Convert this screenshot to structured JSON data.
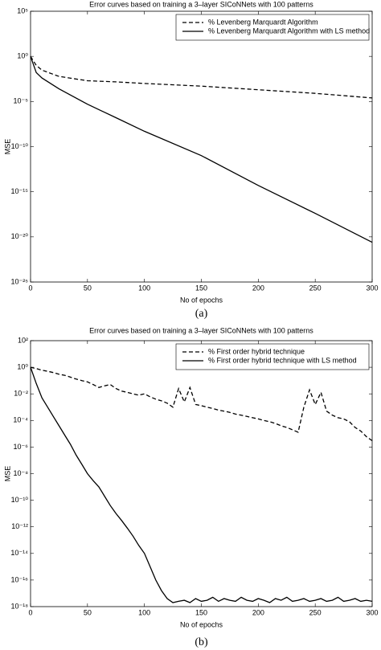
{
  "chart_data": [
    {
      "type": "line",
      "title": "Error curves based on training a 3–layer SICoNNets with 100 patterns",
      "x_label": "No of epochs",
      "y_label": "MSE",
      "caption": "(a)",
      "x": [
        0,
        5,
        10,
        25,
        50,
        75,
        100,
        150,
        200,
        250,
        300
      ],
      "series": [
        {
          "name": "% Levenberg Marquardt Algorithm",
          "color": "#000000",
          "style": "dashed",
          "values": [
            1,
            0.1,
            0.03,
            0.006,
            0.002,
            0.0015,
            0.001,
            0.0005,
            0.0002,
            8e-05,
            2.5e-05
          ]
        },
        {
          "name": "% Levenberg Marquardt Algorithm with LS method",
          "color": "#000000",
          "style": "solid",
          "values": [
            1,
            0.016,
            0.004,
            0.00025,
            5e-06,
            1.6e-07,
            5e-09,
            1e-11,
            5e-15,
            4e-18,
            2.5e-21
          ]
        }
      ],
      "xlim": [
        0,
        300
      ],
      "xticks": [
        0,
        50,
        100,
        150,
        200,
        250,
        300
      ],
      "ylim": [
        1e-25,
        100000.0
      ],
      "log_y": true,
      "legend": "upper right",
      "yticks": [
        {
          "value": 100000.0,
          "label": "10⁵"
        },
        {
          "value": 1,
          "label": "10⁰"
        },
        {
          "value": 1e-05,
          "label": "10⁻⁵"
        },
        {
          "value": 1e-10,
          "label": "10⁻¹⁰"
        },
        {
          "value": 1e-15,
          "label": "10⁻¹⁵"
        },
        {
          "value": 1e-20,
          "label": "10⁻²⁰"
        },
        {
          "value": 1e-25,
          "label": "10⁻²⁵"
        }
      ]
    },
    {
      "type": "line",
      "title": "Error curves based on training a 3–layer SICoNNets with 100 patterns",
      "x_label": "No of epochs",
      "y_label": "MSE",
      "caption": "(b)",
      "x": [
        0,
        5,
        10,
        15,
        20,
        25,
        30,
        35,
        40,
        45,
        50,
        55,
        60,
        65,
        70,
        75,
        80,
        85,
        90,
        95,
        100,
        105,
        110,
        115,
        120,
        125,
        130,
        135,
        140,
        145,
        150,
        155,
        160,
        165,
        170,
        175,
        180,
        185,
        190,
        195,
        200,
        205,
        210,
        215,
        220,
        225,
        230,
        235,
        240,
        245,
        250,
        255,
        260,
        265,
        270,
        275,
        280,
        285,
        290,
        295,
        300
      ],
      "series": [
        {
          "name": "% First order hybrid technique",
          "color": "#000000",
          "style": "dashed",
          "values": [
            1,
            0.8,
            0.6,
            0.5,
            0.4,
            0.3,
            0.25,
            0.18,
            0.13,
            0.1,
            0.08,
            0.05,
            0.03,
            0.04,
            0.05,
            0.025,
            0.016,
            0.013,
            0.01,
            0.008,
            0.01,
            0.006,
            0.004,
            0.003,
            0.002,
            0.001,
            0.025,
            0.0025,
            0.03,
            0.0016,
            0.0013,
            0.001,
            0.0008,
            0.0006,
            0.0005,
            0.0004,
            0.0003,
            0.00025,
            0.0002,
            0.00016,
            0.00013,
            0.0001,
            8e-05,
            6e-05,
            4e-05,
            3e-05,
            2e-05,
            1.3e-05,
            0.001,
            0.02,
            0.0016,
            0.013,
            0.0005,
            0.00025,
            0.00016,
            0.00013,
            8e-05,
            3e-05,
            1.6e-05,
            6e-06,
            3e-06
          ]
        },
        {
          "name": "% First order hybrid technique with LS method",
          "color": "#000000",
          "style": "solid",
          "values": [
            1,
            0.06,
            0.005,
            0.001,
            0.0002,
            4e-05,
            8e-06,
            1.6e-06,
            2.5e-07,
            5e-08,
            1e-08,
            3e-09,
            1e-09,
            2e-10,
            4e-11,
            1e-11,
            3e-12,
            8e-13,
            2e-13,
            4e-14,
            1e-14,
            1e-15,
            1e-16,
            1.6e-17,
            4e-18,
            2e-18,
            2.5e-18,
            3e-18,
            2e-18,
            4e-18,
            2.5e-18,
            3e-18,
            5e-18,
            2.5e-18,
            4e-18,
            3e-18,
            2.5e-18,
            5e-18,
            3e-18,
            2.5e-18,
            4e-18,
            3e-18,
            2e-18,
            4e-18,
            3e-18,
            5e-18,
            2.5e-18,
            3e-18,
            4e-18,
            2.5e-18,
            3e-18,
            4e-18,
            2.5e-18,
            3e-18,
            5e-18,
            2.5e-18,
            3e-18,
            4e-18,
            2.5e-18,
            3e-18,
            2.5e-18
          ]
        }
      ],
      "xlim": [
        0,
        300
      ],
      "xticks": [
        0,
        50,
        100,
        150,
        200,
        250,
        300
      ],
      "ylim": [
        1e-18,
        100
      ],
      "log_y": true,
      "legend": "upper right",
      "yticks": [
        {
          "value": 100,
          "label": "10²"
        },
        {
          "value": 1,
          "label": "10⁰"
        },
        {
          "value": 0.01,
          "label": "10⁻²"
        },
        {
          "value": 0.0001,
          "label": "10⁻⁴"
        },
        {
          "value": 1e-06,
          "label": "10⁻⁶"
        },
        {
          "value": 1e-08,
          "label": "10⁻⁸"
        },
        {
          "value": 1e-10,
          "label": "10⁻¹⁰"
        },
        {
          "value": 1e-12,
          "label": "10⁻¹²"
        },
        {
          "value": 1e-14,
          "label": "10⁻¹⁴"
        },
        {
          "value": 1e-16,
          "label": "10⁻¹⁶"
        },
        {
          "value": 1e-18,
          "label": "10⁻¹⁸"
        }
      ]
    }
  ]
}
